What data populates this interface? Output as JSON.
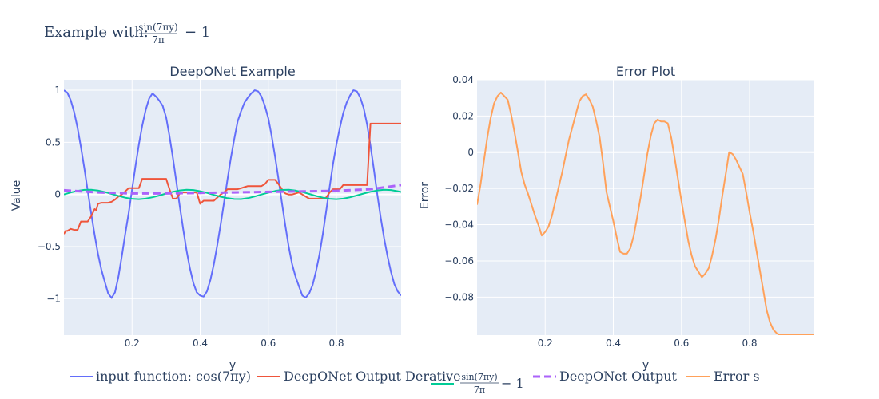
{
  "figure_title": {
    "prefix": "Example with:",
    "frac_numerator": "sin(7πy)",
    "frac_denominator": "7π",
    "suffix": "− 1"
  },
  "legend": [
    {
      "label": "input function: cos(7πy)",
      "color": "#636efa",
      "dash": "solid"
    },
    {
      "label": "DeepONet Output Derative",
      "color": "#ef553b",
      "dash": "solid"
    },
    {
      "label_num": "sin(7πy)",
      "label_den": "7π",
      "label_suffix": "− 1",
      "color": "#00cc96",
      "dash": "solid"
    },
    {
      "label": "DeepONet Output",
      "color": "#ab63fa",
      "dash": "dash"
    },
    {
      "label": "Error s",
      "color": "#ffa15a",
      "dash": "solid"
    }
  ],
  "chart_data": [
    {
      "type": "line",
      "title": "DeepONet Example",
      "xlabel": "y",
      "ylabel": "Value",
      "xlim": [
        0.0,
        0.99
      ],
      "ylim": [
        -1.35,
        1.1
      ],
      "xticks": [
        0.2,
        0.4,
        0.6,
        0.8
      ],
      "xtick_labels": [
        "0.2",
        "0.4",
        "0.6",
        "0.8"
      ],
      "yticks": [
        -1,
        -0.5,
        0,
        0.5,
        1
      ],
      "ytick_labels": [
        "−1",
        "−0.5",
        "0",
        "0.5",
        "1"
      ],
      "grid": true,
      "series": [
        {
          "color": "#636efa",
          "dash": "solid",
          "x": [
            0.0,
            0.01,
            0.02,
            0.03,
            0.04,
            0.05,
            0.06,
            0.07,
            0.08,
            0.09,
            0.1,
            0.11,
            0.12,
            0.13,
            0.14,
            0.15,
            0.16,
            0.17,
            0.18,
            0.19,
            0.2,
            0.21,
            0.22,
            0.23,
            0.24,
            0.25,
            0.26,
            0.27,
            0.28,
            0.29,
            0.3,
            0.31,
            0.32,
            0.33,
            0.34,
            0.35,
            0.36,
            0.37,
            0.38,
            0.39,
            0.4,
            0.41,
            0.42,
            0.43,
            0.44,
            0.45,
            0.46,
            0.47,
            0.48,
            0.49,
            0.5,
            0.51,
            0.52,
            0.53,
            0.54,
            0.55,
            0.56,
            0.57,
            0.58,
            0.59,
            0.6,
            0.61,
            0.62,
            0.63,
            0.64,
            0.65,
            0.66,
            0.67,
            0.68,
            0.69,
            0.7,
            0.71,
            0.72,
            0.73,
            0.74,
            0.75,
            0.76,
            0.77,
            0.78,
            0.79,
            0.8,
            0.81,
            0.82,
            0.83,
            0.84,
            0.85,
            0.86,
            0.87,
            0.88,
            0.89,
            0.9,
            0.91,
            0.92,
            0.93,
            0.94,
            0.95,
            0.96,
            0.97,
            0.98,
            0.99
          ],
          "y": [
            1.0,
            0.976,
            0.905,
            0.79,
            0.637,
            0.454,
            0.249,
            0.034,
            -0.182,
            -0.387,
            -0.569,
            -0.722,
            -0.84,
            -0.95,
            -0.993,
            -0.94,
            -0.79,
            -0.59,
            -0.38,
            -0.18,
            0.05,
            0.27,
            0.48,
            0.66,
            0.81,
            0.92,
            0.97,
            0.94,
            0.9,
            0.85,
            0.74,
            0.56,
            0.35,
            0.12,
            -0.11,
            -0.33,
            -0.54,
            -0.71,
            -0.85,
            -0.94,
            -0.97,
            -0.98,
            -0.93,
            -0.82,
            -0.67,
            -0.49,
            -0.29,
            -0.08,
            0.14,
            0.35,
            0.53,
            0.7,
            0.8,
            0.88,
            0.93,
            0.97,
            1.0,
            0.99,
            0.94,
            0.85,
            0.73,
            0.56,
            0.36,
            0.15,
            -0.08,
            -0.3,
            -0.5,
            -0.67,
            -0.79,
            -0.88,
            -0.97,
            -0.99,
            -0.95,
            -0.87,
            -0.74,
            -0.58,
            -0.38,
            -0.16,
            0.07,
            0.29,
            0.48,
            0.64,
            0.78,
            0.88,
            0.95,
            1.0,
            0.99,
            0.93,
            0.83,
            0.67,
            0.47,
            0.24,
            0.0,
            -0.22,
            -0.42,
            -0.59,
            -0.74,
            -0.86,
            -0.93,
            -0.97
          ]
        },
        {
          "color": "#ef553b",
          "dash": "solid",
          "x": [
            0.0,
            0.005,
            0.01,
            0.02,
            0.03,
            0.04,
            0.05,
            0.06,
            0.07,
            0.08,
            0.09,
            0.095,
            0.1,
            0.11,
            0.12,
            0.13,
            0.14,
            0.15,
            0.16,
            0.17,
            0.18,
            0.19,
            0.2,
            0.21,
            0.22,
            0.23,
            0.24,
            0.25,
            0.26,
            0.27,
            0.28,
            0.29,
            0.3,
            0.31,
            0.32,
            0.33,
            0.34,
            0.35,
            0.36,
            0.37,
            0.38,
            0.39,
            0.4,
            0.41,
            0.42,
            0.43,
            0.44,
            0.45,
            0.46,
            0.47,
            0.48,
            0.49,
            0.5,
            0.51,
            0.52,
            0.53,
            0.54,
            0.55,
            0.56,
            0.57,
            0.58,
            0.59,
            0.6,
            0.61,
            0.62,
            0.63,
            0.64,
            0.65,
            0.66,
            0.67,
            0.68,
            0.69,
            0.7,
            0.71,
            0.72,
            0.73,
            0.74,
            0.75,
            0.76,
            0.77,
            0.78,
            0.79,
            0.8,
            0.81,
            0.82,
            0.83,
            0.84,
            0.85,
            0.86,
            0.87,
            0.88,
            0.885,
            0.89,
            0.9,
            0.91,
            0.92,
            0.93,
            0.94,
            0.95,
            0.96,
            0.97,
            0.98,
            0.99
          ],
          "y": [
            -0.38,
            -0.35,
            -0.35,
            -0.33,
            -0.34,
            -0.34,
            -0.26,
            -0.26,
            -0.26,
            -0.21,
            -0.14,
            -0.15,
            -0.09,
            -0.08,
            -0.08,
            -0.08,
            -0.07,
            -0.05,
            -0.02,
            0.0,
            0.03,
            0.06,
            0.06,
            0.06,
            0.06,
            0.15,
            0.15,
            0.15,
            0.15,
            0.15,
            0.15,
            0.15,
            0.15,
            0.05,
            -0.04,
            -0.04,
            0.01,
            0.02,
            0.02,
            0.02,
            0.02,
            0.02,
            -0.09,
            -0.06,
            -0.06,
            -0.06,
            -0.06,
            -0.03,
            0.0,
            0.02,
            0.05,
            0.05,
            0.05,
            0.05,
            0.06,
            0.07,
            0.08,
            0.08,
            0.08,
            0.08,
            0.08,
            0.1,
            0.14,
            0.14,
            0.14,
            0.1,
            0.05,
            0.01,
            0.0,
            0.0,
            0.01,
            0.02,
            0.0,
            -0.02,
            -0.04,
            -0.04,
            -0.04,
            -0.04,
            -0.04,
            -0.03,
            0.02,
            0.05,
            0.05,
            0.05,
            0.09,
            0.09,
            0.09,
            0.09,
            0.09,
            0.09,
            0.09,
            0.09,
            0.09,
            0.68,
            0.68,
            0.68,
            0.68,
            0.68,
            0.68,
            0.68,
            0.68,
            0.68,
            0.68
          ]
        },
        {
          "color": "#00cc96",
          "dash": "solid",
          "x": [
            0.0,
            0.02,
            0.04,
            0.06,
            0.08,
            0.1,
            0.12,
            0.14,
            0.16,
            0.18,
            0.2,
            0.22,
            0.24,
            0.26,
            0.28,
            0.3,
            0.32,
            0.34,
            0.36,
            0.38,
            0.4,
            0.42,
            0.44,
            0.46,
            0.48,
            0.5,
            0.52,
            0.54,
            0.56,
            0.58,
            0.6,
            0.62,
            0.64,
            0.66,
            0.68,
            0.7,
            0.72,
            0.74,
            0.76,
            0.78,
            0.8,
            0.82,
            0.84,
            0.86,
            0.88,
            0.9,
            0.92,
            0.94,
            0.96,
            0.98,
            0.99
          ],
          "y": [
            0.0,
            0.0192,
            0.0347,
            0.0441,
            0.0452,
            0.0379,
            0.0237,
            0.0053,
            -0.0136,
            -0.0305,
            -0.0418,
            -0.0453,
            -0.0399,
            -0.0273,
            -0.0098,
            0.0089,
            0.0255,
            0.0388,
            0.0453,
            0.0426,
            0.0315,
            0.0148,
            -0.004,
            -0.0216,
            -0.0355,
            -0.0438,
            -0.0447,
            -0.0354,
            -0.0193,
            0.0,
            0.0177,
            0.0333,
            0.0432,
            0.0447,
            0.0376,
            0.0236,
            0.0051,
            -0.0138,
            -0.0307,
            -0.0419,
            -0.0453,
            -0.0398,
            -0.0272,
            -0.0096,
            0.009,
            0.0256,
            0.0389,
            0.0453,
            0.0425,
            0.0314,
            0.0245
          ]
        },
        {
          "color": "#ab63fa",
          "dash": "dash",
          "x": [
            0.0,
            0.1,
            0.2,
            0.3,
            0.4,
            0.5,
            0.6,
            0.7,
            0.8,
            0.9,
            0.99
          ],
          "y": [
            0.04,
            0.02,
            0.01,
            0.01,
            0.015,
            0.02,
            0.025,
            0.03,
            0.035,
            0.05,
            0.09
          ]
        }
      ]
    },
    {
      "type": "line",
      "title": "Error Plot",
      "xlabel": "y",
      "ylabel": "Error",
      "xlim": [
        0.0,
        0.99
      ],
      "ylim": [
        -0.101,
        0.04
      ],
      "xticks": [
        0.2,
        0.4,
        0.6,
        0.8
      ],
      "xtick_labels": [
        "0.2",
        "0.4",
        "0.6",
        "0.8"
      ],
      "yticks": [
        0.04,
        0.02,
        0,
        -0.02,
        -0.04,
        -0.06,
        -0.08
      ],
      "ytick_labels": [
        "0.04",
        "0.02",
        "0",
        "−0.02",
        "−0.04",
        "−0.06",
        "−0.08"
      ],
      "grid": true,
      "series": [
        {
          "color": "#ffa15a",
          "dash": "solid",
          "x": [
            0.0,
            0.01,
            0.02,
            0.03,
            0.04,
            0.05,
            0.06,
            0.07,
            0.08,
            0.09,
            0.1,
            0.11,
            0.12,
            0.13,
            0.14,
            0.15,
            0.16,
            0.17,
            0.18,
            0.19,
            0.2,
            0.21,
            0.22,
            0.23,
            0.24,
            0.25,
            0.26,
            0.27,
            0.28,
            0.29,
            0.3,
            0.31,
            0.32,
            0.33,
            0.34,
            0.35,
            0.36,
            0.37,
            0.38,
            0.39,
            0.4,
            0.41,
            0.42,
            0.43,
            0.44,
            0.45,
            0.46,
            0.47,
            0.48,
            0.49,
            0.5,
            0.51,
            0.52,
            0.53,
            0.54,
            0.55,
            0.56,
            0.57,
            0.58,
            0.59,
            0.6,
            0.61,
            0.62,
            0.63,
            0.64,
            0.65,
            0.66,
            0.67,
            0.68,
            0.69,
            0.7,
            0.71,
            0.72,
            0.73,
            0.74,
            0.75,
            0.76,
            0.77,
            0.78,
            0.79,
            0.8,
            0.81,
            0.82,
            0.83,
            0.84,
            0.85,
            0.86,
            0.87,
            0.88,
            0.89,
            0.895,
            0.9,
            0.91,
            0.92,
            0.93,
            0.94,
            0.95,
            0.96,
            0.97,
            0.98,
            0.99
          ],
          "y": [
            -0.029,
            -0.018,
            -0.005,
            0.008,
            0.019,
            0.027,
            0.031,
            0.033,
            0.031,
            0.029,
            0.021,
            0.011,
            0.0,
            -0.011,
            -0.018,
            -0.023,
            -0.029,
            -0.035,
            -0.04,
            -0.046,
            -0.044,
            -0.041,
            -0.035,
            -0.027,
            -0.019,
            -0.011,
            -0.002,
            0.007,
            0.014,
            0.021,
            0.028,
            0.031,
            0.032,
            0.029,
            0.025,
            0.017,
            0.008,
            -0.006,
            -0.022,
            -0.03,
            -0.038,
            -0.047,
            -0.055,
            -0.056,
            -0.056,
            -0.053,
            -0.046,
            -0.036,
            -0.025,
            -0.013,
            -0.001,
            0.009,
            0.016,
            0.018,
            0.017,
            0.017,
            0.016,
            0.008,
            -0.003,
            -0.015,
            -0.027,
            -0.038,
            -0.049,
            -0.057,
            -0.063,
            -0.066,
            -0.069,
            -0.067,
            -0.064,
            -0.057,
            -0.048,
            -0.037,
            -0.024,
            -0.012,
            0.0,
            -0.001,
            -0.004,
            -0.008,
            -0.012,
            -0.022,
            -0.033,
            -0.043,
            -0.054,
            -0.065,
            -0.076,
            -0.087,
            -0.094,
            -0.098,
            -0.1,
            -0.101,
            -0.101,
            -0.101,
            -0.101,
            -0.101,
            -0.101,
            -0.101,
            -0.101,
            -0.101,
            -0.101,
            -0.101,
            -0.101
          ]
        }
      ]
    }
  ]
}
